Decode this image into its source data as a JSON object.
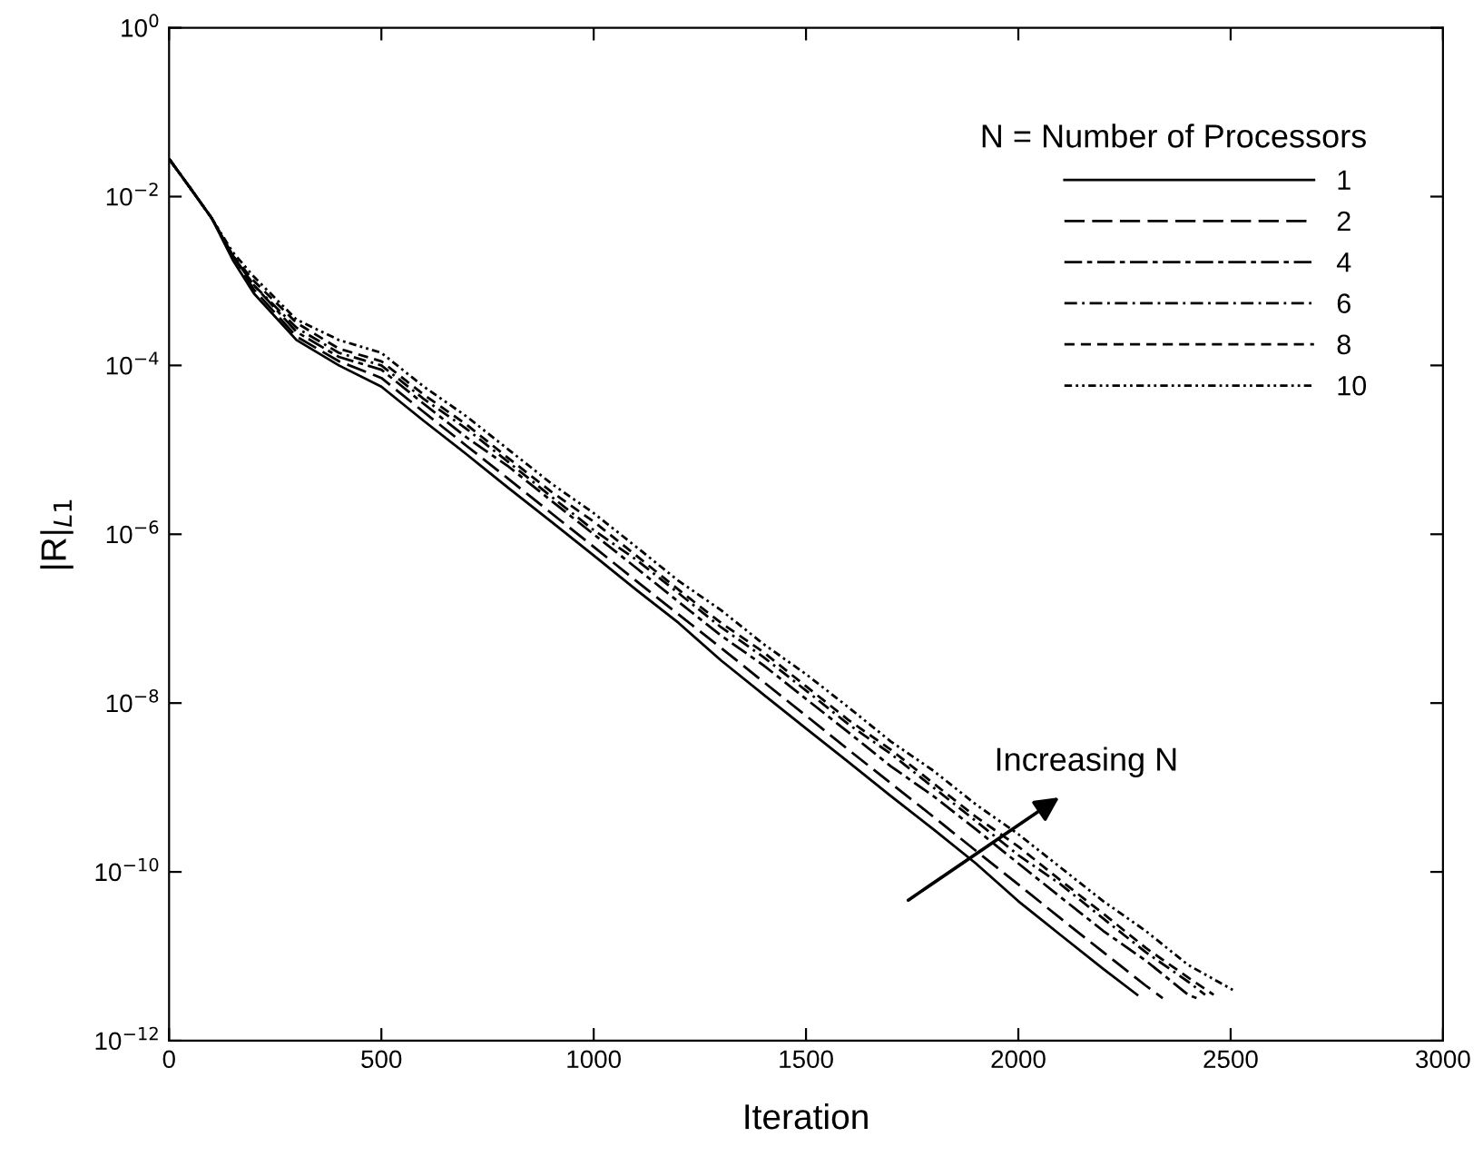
{
  "chart_data": {
    "type": "line",
    "xlabel": "Iteration",
    "ylabel": "|R|$_{L1}$",
    "legend_title": "N = Number of Processors",
    "legend": "top right",
    "log": "y",
    "grid": false,
    "xlim": [
      0,
      3000
    ],
    "xticks": [
      0,
      500,
      1000,
      1500,
      2000,
      2500,
      3000
    ],
    "ylim": [
      1e-12,
      1
    ],
    "yticks": [
      {
        "value": 1e-12,
        "label": "10$^{−12}$"
      },
      {
        "value": 1e-10,
        "label": "10$^{−10}$"
      },
      {
        "value": 1e-08,
        "label": "10$^{−8}$"
      },
      {
        "value": 1e-06,
        "label": "10$^{−6}$"
      },
      {
        "value": 0.0001,
        "label": "10$^{−4}$"
      },
      {
        "value": 0.01,
        "label": "10$^{−2}$"
      },
      {
        "value": 1,
        "label": "10$^{0}$"
      }
    ],
    "annotations": [
      "Increasing N"
    ],
    "series": [
      {
        "name": "1",
        "color": "#000000",
        "line_style": "solid",
        "x": [
          0,
          50,
          100,
          150,
          200,
          300,
          400,
          500,
          600,
          700,
          800,
          900,
          1000,
          1100,
          1200,
          1300,
          1400,
          1500,
          1600,
          1700,
          1800,
          1900,
          2000,
          2100,
          2200,
          2280
        ],
        "values": [
          0.028,
          0.0126,
          0.0056,
          0.00178,
          0.00071,
          0.0002,
          0.0001,
          5.6e-05,
          2.2e-05,
          8.9e-06,
          3.5e-06,
          1.41e-06,
          5.6e-07,
          2.2e-07,
          8.9e-08,
          3.2e-08,
          1.26e-08,
          5e-09,
          2e-09,
          7.9e-10,
          3.2e-10,
          1.26e-10,
          4.5e-11,
          1.78e-11,
          7.1e-12,
          3.5e-12
        ]
      },
      {
        "name": "2",
        "color": "#000000",
        "line_style": "longdash",
        "x": [
          0,
          50,
          100,
          150,
          200,
          300,
          400,
          500,
          600,
          700,
          800,
          900,
          1000,
          1100,
          1200,
          1300,
          1400,
          1500,
          1600,
          1700,
          1800,
          1900,
          2000,
          2100,
          2200,
          2300,
          2340
        ],
        "values": [
          0.028,
          0.0126,
          0.0056,
          0.002,
          0.00079,
          0.00022,
          0.000112,
          7.1e-05,
          2.8e-05,
          1.12e-05,
          4.5e-06,
          1.78e-06,
          7.1e-07,
          2.8e-07,
          1.12e-07,
          4.5e-08,
          1.78e-08,
          7.1e-09,
          2.8e-09,
          1.12e-09,
          4.5e-10,
          1.78e-10,
          7.1e-11,
          2.8e-11,
          1.12e-11,
          4.5e-12,
          3.2e-12
        ]
      },
      {
        "name": "4",
        "color": "#000000",
        "line_style": "longshort",
        "x": [
          0,
          50,
          100,
          150,
          200,
          300,
          400,
          500,
          600,
          700,
          800,
          900,
          1000,
          1100,
          1200,
          1300,
          1400,
          1500,
          1600,
          1700,
          1800,
          1900,
          2000,
          2100,
          2200,
          2300,
          2400,
          2420
        ],
        "values": [
          0.028,
          0.0126,
          0.0056,
          0.002,
          0.00089,
          0.00025,
          0.000126,
          8.9e-05,
          3.5e-05,
          1.41e-05,
          6.3e-06,
          2.5e-06,
          1e-06,
          4e-07,
          1.58e-07,
          6.3e-08,
          2.8e-08,
          1.12e-08,
          4.5e-09,
          1.78e-09,
          7.9e-10,
          3.2e-10,
          1.26e-10,
          5e-11,
          2e-11,
          8.9e-12,
          3.5e-12,
          3.2e-12
        ]
      },
      {
        "name": "6",
        "color": "#000000",
        "line_style": "dashdot",
        "x": [
          0,
          50,
          100,
          150,
          200,
          300,
          400,
          500,
          600,
          700,
          800,
          900,
          1000,
          1100,
          1200,
          1300,
          1400,
          1500,
          1600,
          1700,
          1800,
          1900,
          2000,
          2100,
          2200,
          2300,
          2400,
          2440
        ],
        "values": [
          0.028,
          0.0126,
          0.0056,
          0.002,
          0.00089,
          0.00028,
          0.000141,
          0.0001,
          4e-05,
          1.78e-05,
          7.1e-06,
          2.8e-06,
          1.12e-06,
          5e-07,
          2e-07,
          7.9e-08,
          3.5e-08,
          1.41e-08,
          5.6e-09,
          2.5e-09,
          1e-09,
          4e-10,
          1.58e-10,
          7.1e-11,
          2.8e-11,
          1.12e-11,
          5e-12,
          3.5e-12
        ]
      },
      {
        "name": "8",
        "color": "#000000",
        "line_style": "dashed",
        "x": [
          0,
          50,
          100,
          150,
          200,
          300,
          400,
          500,
          600,
          700,
          800,
          900,
          1000,
          1100,
          1200,
          1300,
          1400,
          1500,
          1600,
          1700,
          1800,
          1900,
          2000,
          2100,
          2200,
          2300,
          2400,
          2460
        ],
        "values": [
          0.028,
          0.0126,
          0.0056,
          0.002,
          0.001,
          0.00032,
          0.000158,
          0.000112,
          4.5e-05,
          2e-05,
          7.9e-06,
          3.2e-06,
          1.41e-06,
          5.6e-07,
          2.2e-07,
          8.9e-08,
          4e-08,
          1.58e-08,
          6.3e-09,
          2.8e-09,
          1.12e-09,
          4.5e-10,
          2e-10,
          7.9e-11,
          3.2e-11,
          1.26e-11,
          5.6e-12,
          3.5e-12
        ]
      },
      {
        "name": "10",
        "color": "#000000",
        "line_style": "dotted",
        "x": [
          0,
          50,
          100,
          150,
          200,
          300,
          400,
          500,
          600,
          700,
          800,
          900,
          1000,
          1100,
          1200,
          1300,
          1400,
          1500,
          1600,
          1700,
          1800,
          1900,
          2000,
          2100,
          2200,
          2300,
          2400,
          2505
        ],
        "values": [
          0.028,
          0.0126,
          0.0056,
          0.0022,
          0.00112,
          0.00035,
          0.0002,
          0.000141,
          5.6e-05,
          2.5e-05,
          1e-05,
          4e-06,
          1.78e-06,
          7.1e-07,
          2.8e-07,
          1.26e-07,
          5e-08,
          2.2e-08,
          8.9e-09,
          3.5e-09,
          1.58e-09,
          6.3e-10,
          2.8e-10,
          1.12e-10,
          4.5e-11,
          2e-11,
          7.9e-12,
          4e-12
        ]
      }
    ]
  }
}
